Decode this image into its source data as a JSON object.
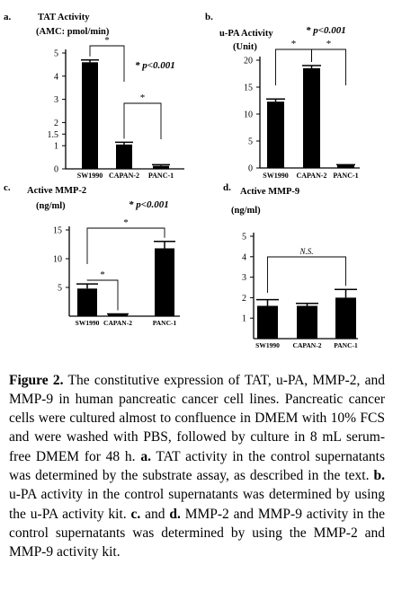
{
  "chart_data": [
    {
      "type": "bar",
      "panel_label": "a.",
      "title": "TAT Activity",
      "unit_label": "(AMC: pmol/min)",
      "categories": [
        "SW1990",
        "CAPAN-2",
        "PANC-1"
      ],
      "values": [
        4.6,
        1.05,
        0.13
      ],
      "errors": [
        0.1,
        0.1,
        0.05
      ],
      "ylim": [
        0,
        5
      ],
      "yticks": [
        "0",
        "1",
        "1.5",
        "2",
        "3",
        "4",
        "5"
      ],
      "significance": "* p<0.001",
      "brackets": [
        {
          "from": "SW1990",
          "to": "CAPAN-2",
          "label": "*"
        },
        {
          "from": "CAPAN-2",
          "to": "PANC-1",
          "label": "*"
        }
      ]
    },
    {
      "type": "bar",
      "panel_label": "b.",
      "title": "u-PA Activity",
      "unit_label": "(Unit)",
      "categories": [
        "SW1990",
        "CAPAN-2",
        "PANC-1"
      ],
      "values": [
        12.3,
        18.5,
        0.5
      ],
      "errors": [
        0.5,
        0.5,
        0.1
      ],
      "ylim": [
        0,
        20
      ],
      "yticks": [
        "0",
        "5",
        "10",
        "15",
        "20"
      ],
      "significance": "* p<0.001",
      "brackets": [
        {
          "from": "SW1990",
          "to": "CAPAN-2",
          "label": "*"
        },
        {
          "from": "CAPAN-2",
          "to": "PANC-1",
          "label": "*"
        }
      ]
    },
    {
      "type": "bar",
      "panel_label": "c.",
      "title": "Active MMP-2",
      "unit_label": "(ng/ml)",
      "categories": [
        "SW1990",
        "CAPAN-2",
        "PANC-1"
      ],
      "values": [
        4.8,
        0.3,
        11.8
      ],
      "errors": [
        0.8,
        0.1,
        1.2
      ],
      "ylim": [
        0,
        15
      ],
      "yticks": [
        "5",
        "10",
        "15"
      ],
      "significance": "* p<0.001",
      "brackets": [
        {
          "from": "SW1990",
          "to": "CAPAN-2",
          "label": "*"
        },
        {
          "from": "SW1990",
          "to": "PANC-1",
          "label": "*"
        }
      ]
    },
    {
      "type": "bar",
      "panel_label": "d.",
      "title": "Active MMP-9",
      "unit_label": "(ng/ml)",
      "categories": [
        "SW1990",
        "CAPAN-2",
        "PANC-1"
      ],
      "values": [
        1.6,
        1.6,
        2.0
      ],
      "errors": [
        0.3,
        0.12,
        0.4
      ],
      "ylim": [
        0,
        5
      ],
      "yticks": [
        "1",
        "2",
        "3",
        "4",
        "5"
      ],
      "significance": "",
      "brackets": [
        {
          "from": "SW1990",
          "to": "PANC-1",
          "label": "N.S."
        }
      ]
    }
  ],
  "caption": {
    "heading": "Figure 2.",
    "intro": " The constitutive expression of TAT, u-PA, MMP-2, and MMP-9 in human pancreatic cancer cell lines. Pancreatic cancer cells were cultured almost to confluence in DMEM with 10% FCS and were washed with PBS, followed by culture in 8 mL serum-free DMEM for 48 h. ",
    "a_label": "a.",
    "a_text": " TAT activity in the control supernatants was determined by the substrate assay, as described in the text. ",
    "b_label": "b.",
    "b_text": " u-PA activity in the control supernatants was determined by using the u-PA activity kit. ",
    "c_label": "c.",
    "and_text": " and ",
    "d_label": "d.",
    "cd_text": " MMP-2 and MMP-9 activity in the control supernatants was determined by using the MMP-2 and MMP-9 activity kit."
  }
}
